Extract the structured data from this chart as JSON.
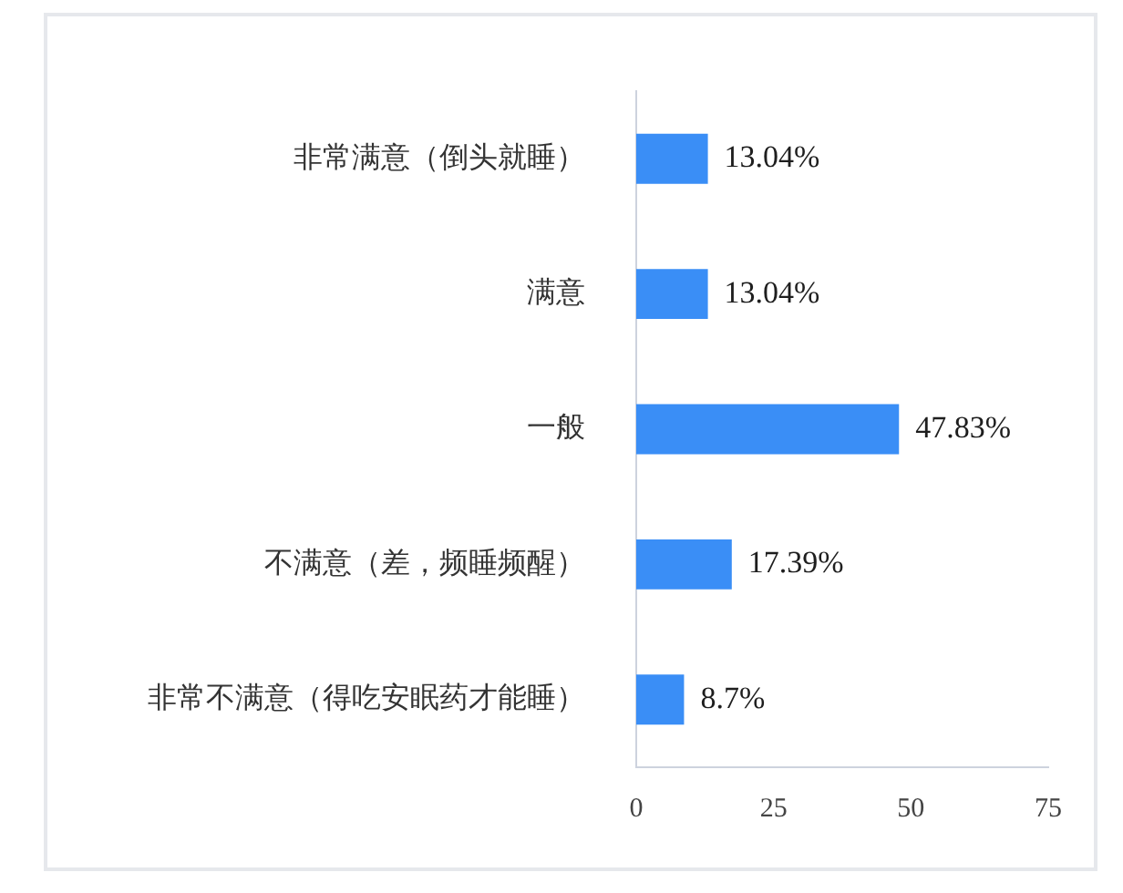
{
  "chart_data": {
    "type": "bar",
    "orientation": "horizontal",
    "categories": [
      "非常满意（倒头就睡）",
      "满意",
      "一般",
      "不满意（差，频睡频醒）",
      "非常不满意（得吃安眠药才能睡）"
    ],
    "values": [
      13.04,
      13.04,
      47.83,
      17.39,
      8.7
    ],
    "value_labels": [
      "13.04%",
      "13.04%",
      "47.83%",
      "17.39%",
      "8.7%"
    ],
    "color": "#3a8ef6",
    "xlim": [
      0,
      75
    ],
    "xticks": [
      0,
      25,
      50,
      75
    ],
    "grid": false,
    "legend": false
  }
}
